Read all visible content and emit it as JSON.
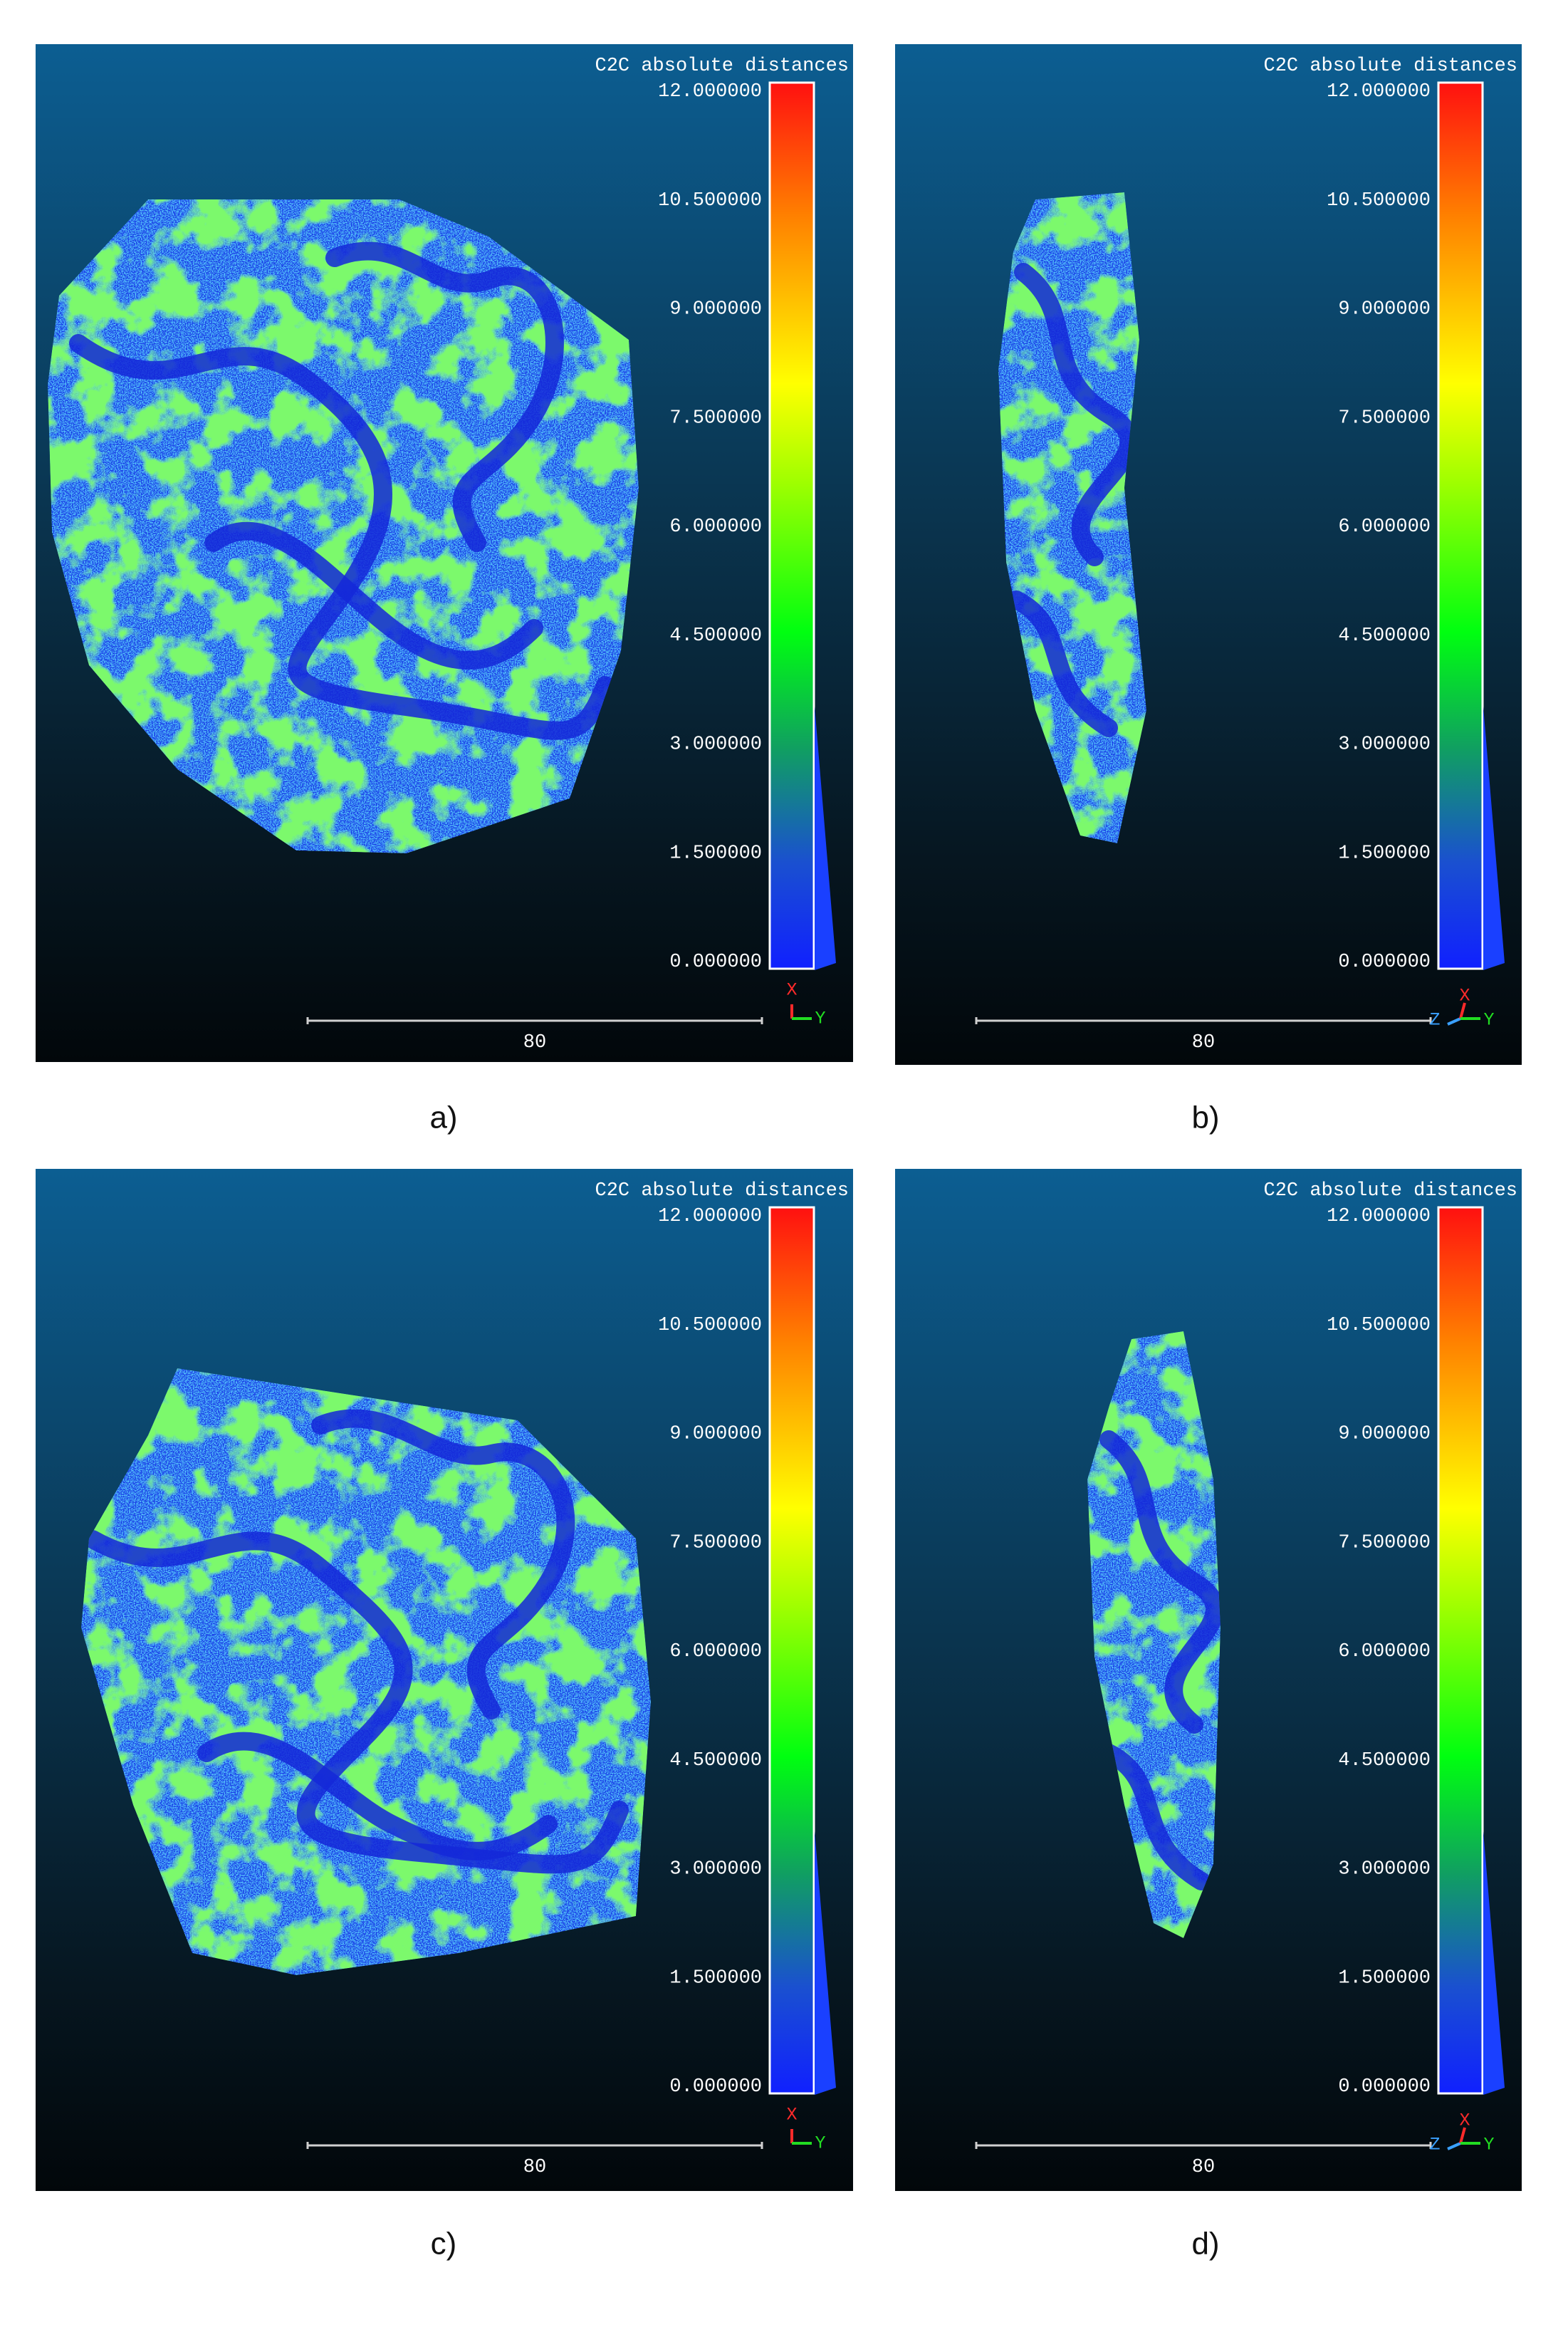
{
  "panels": [
    {
      "caption": "a)",
      "colorbar_title": "C2C absolute distances",
      "colorbar_ticks": [
        "12.000000",
        "10.500000",
        "9.000000",
        "7.500000",
        "6.000000",
        "4.500000",
        "3.000000",
        "1.500000",
        "0.000000"
      ],
      "scale_bar_label": "80",
      "axes": [
        {
          "label": "X",
          "color": "#ff2a2a"
        },
        {
          "label": "Y",
          "color": "#22dd22"
        }
      ]
    },
    {
      "caption": "b)",
      "colorbar_title": "C2C absolute distances",
      "colorbar_ticks": [
        "12.000000",
        "10.500000",
        "9.000000",
        "7.500000",
        "6.000000",
        "4.500000",
        "3.000000",
        "1.500000",
        "0.000000"
      ],
      "scale_bar_label": "80",
      "axes": [
        {
          "label": "Z",
          "color": "#3aa0ff"
        },
        {
          "label": "X",
          "color": "#ff2a2a"
        },
        {
          "label": "Y",
          "color": "#22dd22"
        }
      ]
    },
    {
      "caption": "c)",
      "colorbar_title": "C2C absolute distances",
      "colorbar_ticks": [
        "12.000000",
        "10.500000",
        "9.000000",
        "7.500000",
        "6.000000",
        "4.500000",
        "3.000000",
        "1.500000",
        "0.000000"
      ],
      "scale_bar_label": "80",
      "axes": [
        {
          "label": "X",
          "color": "#ff2a2a"
        },
        {
          "label": "Y",
          "color": "#22dd22"
        }
      ]
    },
    {
      "caption": "d)",
      "colorbar_title": "C2C absolute distances",
      "colorbar_ticks": [
        "12.000000",
        "10.500000",
        "9.000000",
        "7.500000",
        "6.000000",
        "4.500000",
        "3.000000",
        "1.500000",
        "0.000000"
      ],
      "scale_bar_label": "80",
      "axes": [
        {
          "label": "Z",
          "color": "#3aa0ff"
        },
        {
          "label": "X",
          "color": "#ff2a2a"
        },
        {
          "label": "Y",
          "color": "#22dd22"
        }
      ]
    }
  ]
}
